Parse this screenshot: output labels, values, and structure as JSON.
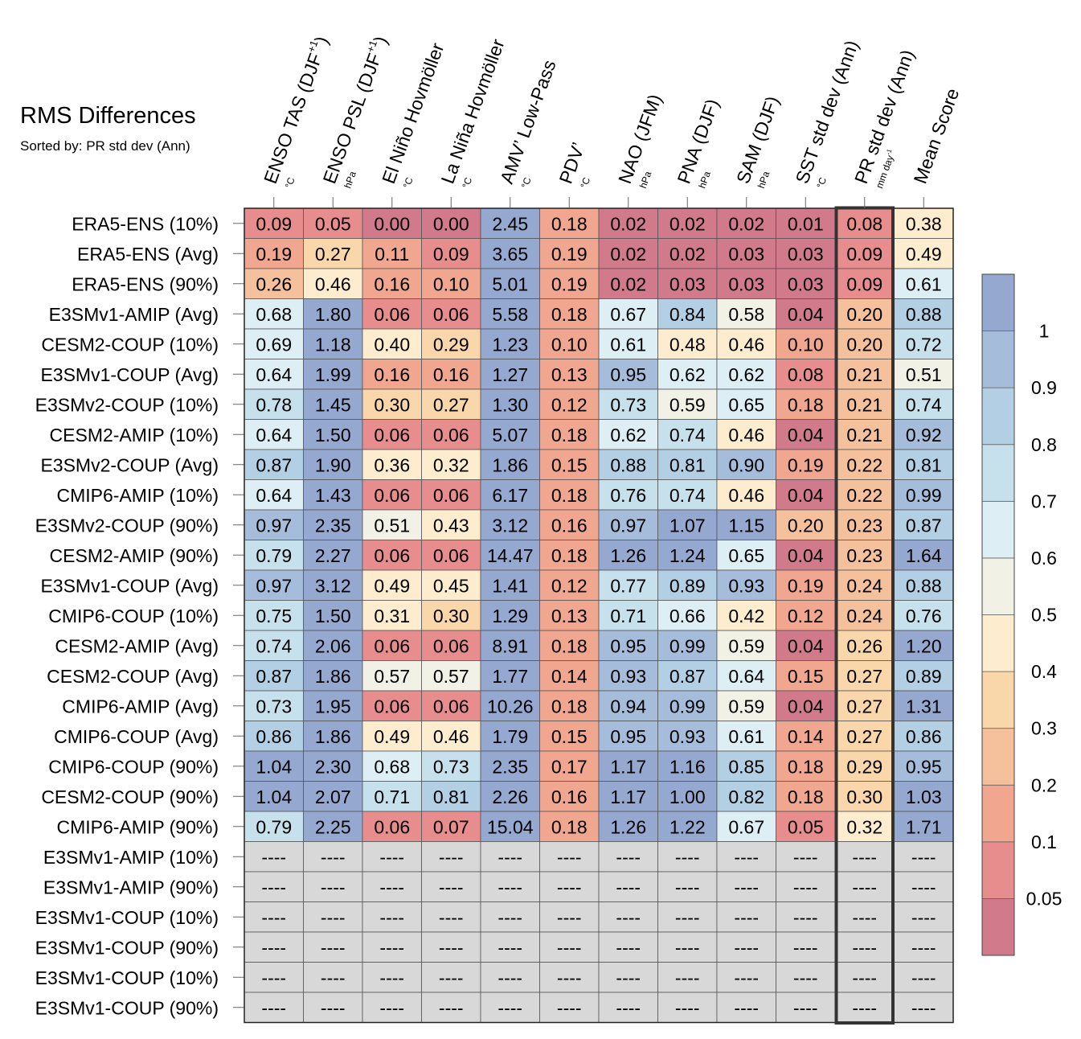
{
  "title": "RMS Differences",
  "subtitle": "Sorted by: PR std dev (Ann)",
  "chart_data": {
    "type": "heatmap",
    "title": "RMS Differences",
    "subtitle": "Sorted by: PR std dev (Ann)",
    "missing_label": "----",
    "highlight_column": "PR std dev (Ann)",
    "columns": [
      {
        "label": "ENSO TAS (DJF",
        "sup": "+1",
        "close": ")",
        "unit": "°C"
      },
      {
        "label": "ENSO PSL (DJF",
        "sup": "+1",
        "close": ")",
        "unit": "hPa"
      },
      {
        "label": "El Niño Hovmöller",
        "unit": "°C"
      },
      {
        "label": "La Niña Hovmöller",
        "unit": "°C"
      },
      {
        "label": "AMV’ Low-Pass",
        "unit": "°C"
      },
      {
        "label": "PDV’",
        "unit": "°C"
      },
      {
        "label": "NAO (JFM)",
        "unit": "hPa"
      },
      {
        "label": "PNA (DJF)",
        "unit": "hPa"
      },
      {
        "label": "SAM (DJF)",
        "unit": "hPa"
      },
      {
        "label": "SST std dev (Ann)",
        "unit": "°C"
      },
      {
        "label": "PR std dev (Ann)",
        "unit": "mm day",
        "unit_sup": "-1"
      },
      {
        "label": "Mean Score",
        "unit": ""
      }
    ],
    "rows": [
      {
        "label": "ERA5-ENS (10%)",
        "values": [
          "0.09",
          "0.05",
          "0.00",
          "0.00",
          "2.45",
          "0.18",
          "0.02",
          "0.02",
          "0.02",
          "0.01",
          "0.08",
          "0.38"
        ],
        "colors": [
          1,
          1,
          0,
          0,
          11,
          2,
          0,
          0,
          0,
          0,
          1,
          5
        ]
      },
      {
        "label": "ERA5-ENS (Avg)",
        "values": [
          "0.19",
          "0.27",
          "0.11",
          "0.09",
          "3.65",
          "0.19",
          "0.02",
          "0.02",
          "0.03",
          "0.03",
          "0.09",
          "0.49"
        ],
        "colors": [
          2,
          4,
          2,
          1,
          11,
          2,
          0,
          0,
          0,
          0,
          1,
          5
        ]
      },
      {
        "label": "ERA5-ENS (90%)",
        "values": [
          "0.26",
          "0.46",
          "0.16",
          "0.10",
          "5.01",
          "0.19",
          "0.02",
          "0.03",
          "0.03",
          "0.03",
          "0.09",
          "0.61"
        ],
        "colors": [
          3,
          5,
          2,
          2,
          11,
          2,
          0,
          0,
          0,
          0,
          1,
          7
        ]
      },
      {
        "label": "E3SMv1-AMIP (Avg)",
        "values": [
          "0.68",
          "1.80",
          "0.06",
          "0.06",
          "5.58",
          "0.18",
          "0.67",
          "0.84",
          "0.58",
          "0.04",
          "0.20",
          "0.88"
        ],
        "colors": [
          7,
          11,
          1,
          1,
          11,
          2,
          7,
          9,
          6,
          0,
          3,
          9
        ]
      },
      {
        "label": "CESM2-COUP (10%)",
        "values": [
          "0.69",
          "1.18",
          "0.40",
          "0.29",
          "1.23",
          "0.10",
          "0.61",
          "0.48",
          "0.46",
          "0.10",
          "0.20",
          "0.72"
        ],
        "colors": [
          7,
          11,
          5,
          4,
          11,
          2,
          7,
          5,
          5,
          2,
          3,
          8
        ]
      },
      {
        "label": "E3SMv1-COUP (Avg)",
        "values": [
          "0.64",
          "1.99",
          "0.16",
          "0.16",
          "1.27",
          "0.13",
          "0.95",
          "0.62",
          "0.62",
          "0.08",
          "0.21",
          "0.51"
        ],
        "colors": [
          7,
          11,
          2,
          2,
          11,
          2,
          10,
          7,
          7,
          1,
          3,
          6
        ]
      },
      {
        "label": "E3SMv2-COUP (10%)",
        "values": [
          "0.78",
          "1.45",
          "0.30",
          "0.27",
          "1.30",
          "0.12",
          "0.73",
          "0.59",
          "0.65",
          "0.18",
          "0.21",
          "0.74"
        ],
        "colors": [
          8,
          11,
          4,
          4,
          11,
          2,
          8,
          6,
          7,
          2,
          3,
          8
        ]
      },
      {
        "label": "CESM2-AMIP (10%)",
        "values": [
          "0.64",
          "1.50",
          "0.06",
          "0.06",
          "5.07",
          "0.18",
          "0.62",
          "0.74",
          "0.46",
          "0.04",
          "0.21",
          "0.92"
        ],
        "colors": [
          7,
          11,
          1,
          1,
          11,
          2,
          7,
          8,
          5,
          0,
          3,
          10
        ]
      },
      {
        "label": "E3SMv2-COUP (Avg)",
        "values": [
          "0.87",
          "1.90",
          "0.36",
          "0.32",
          "1.86",
          "0.15",
          "0.88",
          "0.81",
          "0.90",
          "0.19",
          "0.22",
          "0.81"
        ],
        "colors": [
          9,
          11,
          5,
          5,
          11,
          2,
          9,
          9,
          10,
          2,
          3,
          9
        ]
      },
      {
        "label": "CMIP6-AMIP (10%)",
        "values": [
          "0.64",
          "1.43",
          "0.06",
          "0.06",
          "6.17",
          "0.18",
          "0.76",
          "0.74",
          "0.46",
          "0.04",
          "0.22",
          "0.99"
        ],
        "colors": [
          7,
          11,
          1,
          1,
          11,
          2,
          8,
          8,
          5,
          0,
          3,
          10
        ]
      },
      {
        "label": "E3SMv2-COUP (90%)",
        "values": [
          "0.97",
          "2.35",
          "0.51",
          "0.43",
          "3.12",
          "0.16",
          "0.97",
          "1.07",
          "1.15",
          "0.20",
          "0.23",
          "0.87"
        ],
        "colors": [
          10,
          11,
          6,
          5,
          11,
          2,
          10,
          11,
          11,
          3,
          3,
          9
        ]
      },
      {
        "label": "CESM2-AMIP (90%)",
        "values": [
          "0.79",
          "2.27",
          "0.06",
          "0.06",
          "14.47",
          "0.18",
          "1.26",
          "1.24",
          "0.65",
          "0.04",
          "0.23",
          "1.64"
        ],
        "colors": [
          8,
          11,
          1,
          1,
          11,
          2,
          11,
          11,
          7,
          0,
          3,
          11
        ]
      },
      {
        "label": "E3SMv1-COUP (Avg)",
        "values": [
          "0.97",
          "3.12",
          "0.49",
          "0.45",
          "1.41",
          "0.12",
          "0.77",
          "0.89",
          "0.93",
          "0.19",
          "0.24",
          "0.88"
        ],
        "colors": [
          10,
          11,
          5,
          5,
          11,
          2,
          8,
          9,
          10,
          2,
          3,
          9
        ]
      },
      {
        "label": "CMIP6-COUP (10%)",
        "values": [
          "0.75",
          "1.50",
          "0.31",
          "0.30",
          "1.29",
          "0.13",
          "0.71",
          "0.66",
          "0.42",
          "0.12",
          "0.24",
          "0.76"
        ],
        "colors": [
          8,
          11,
          5,
          4,
          11,
          2,
          8,
          7,
          5,
          2,
          3,
          8
        ]
      },
      {
        "label": "CESM2-AMIP (Avg)",
        "values": [
          "0.74",
          "2.06",
          "0.06",
          "0.06",
          "8.91",
          "0.18",
          "0.95",
          "0.99",
          "0.59",
          "0.04",
          "0.26",
          "1.20"
        ],
        "colors": [
          8,
          11,
          1,
          1,
          11,
          2,
          10,
          10,
          6,
          0,
          4,
          11
        ]
      },
      {
        "label": "CESM2-COUP (Avg)",
        "values": [
          "0.87",
          "1.86",
          "0.57",
          "0.57",
          "1.77",
          "0.14",
          "0.93",
          "0.87",
          "0.64",
          "0.15",
          "0.27",
          "0.89"
        ],
        "colors": [
          9,
          11,
          6,
          6,
          11,
          2,
          10,
          9,
          7,
          2,
          4,
          9
        ]
      },
      {
        "label": "CMIP6-AMIP (Avg)",
        "values": [
          "0.73",
          "1.95",
          "0.06",
          "0.06",
          "10.26",
          "0.18",
          "0.94",
          "0.99",
          "0.59",
          "0.04",
          "0.27",
          "1.31"
        ],
        "colors": [
          8,
          11,
          1,
          1,
          11,
          2,
          10,
          10,
          6,
          0,
          4,
          11
        ]
      },
      {
        "label": "CMIP6-COUP (Avg)",
        "values": [
          "0.86",
          "1.86",
          "0.49",
          "0.46",
          "1.79",
          "0.15",
          "0.95",
          "0.93",
          "0.61",
          "0.14",
          "0.27",
          "0.86"
        ],
        "colors": [
          9,
          11,
          5,
          5,
          11,
          2,
          10,
          10,
          7,
          2,
          4,
          9
        ]
      },
      {
        "label": "CMIP6-COUP (90%)",
        "values": [
          "1.04",
          "2.30",
          "0.68",
          "0.73",
          "2.35",
          "0.17",
          "1.17",
          "1.16",
          "0.85",
          "0.18",
          "0.29",
          "0.95"
        ],
        "colors": [
          11,
          11,
          7,
          8,
          11,
          2,
          11,
          11,
          9,
          2,
          4,
          10
        ]
      },
      {
        "label": "CESM2-COUP (90%)",
        "values": [
          "1.04",
          "2.07",
          "0.71",
          "0.81",
          "2.26",
          "0.16",
          "1.17",
          "1.00",
          "0.82",
          "0.18",
          "0.30",
          "1.03"
        ],
        "colors": [
          11,
          11,
          8,
          9,
          11,
          2,
          11,
          11,
          9,
          2,
          4,
          11
        ]
      },
      {
        "label": "CMIP6-AMIP (90%)",
        "values": [
          "0.79",
          "2.25",
          "0.06",
          "0.07",
          "15.04",
          "0.18",
          "1.26",
          "1.22",
          "0.67",
          "0.05",
          "0.32",
          "1.71"
        ],
        "colors": [
          8,
          11,
          1,
          1,
          11,
          2,
          11,
          11,
          7,
          1,
          5,
          11
        ]
      },
      {
        "label": "E3SMv1-AMIP (10%)",
        "values": null
      },
      {
        "label": "E3SMv1-AMIP (90%)",
        "values": null
      },
      {
        "label": "E3SMv1-COUP (10%)",
        "values": null
      },
      {
        "label": "E3SMv1-COUP (90%)",
        "values": null
      },
      {
        "label": "E3SMv1-COUP (10%)",
        "values": null
      },
      {
        "label": "E3SMv1-COUP (90%)",
        "values": null
      }
    ],
    "colorbar": {
      "colors": [
        "#d17a8b",
        "#e88d8d",
        "#f0a68f",
        "#f5c09c",
        "#fad6ab",
        "#fdeccd",
        "#f1f1e6",
        "#ddeef5",
        "#c6e0ec",
        "#b3cfe4",
        "#a5bddb",
        "#95a8d0"
      ],
      "tick_labels": [
        "0.05",
        "0.1",
        "0.2",
        "0.3",
        "0.4",
        "0.5",
        "0.6",
        "0.7",
        "0.8",
        "0.9",
        "1"
      ]
    },
    "missing_color": "#d8d8d8"
  }
}
